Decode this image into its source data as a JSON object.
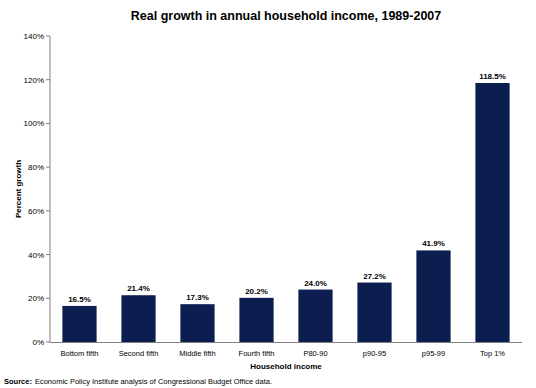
{
  "chart_data": {
    "type": "bar",
    "title": "Real growth in annual household income, 1989-2007",
    "x_label": "Household income",
    "y_label": "Percent growth",
    "source": {
      "label": "Source:",
      "text": "Economic Policy Institute analysis of Congressional Budget Office data."
    },
    "categories": [
      "Bottom fifth",
      "Second fifth",
      "Middle fifth",
      "Fourth fifth",
      "P80-90",
      "p90-95",
      "p95-99",
      "Top 1%"
    ],
    "values": [
      16.5,
      21.4,
      17.3,
      20.2,
      24.0,
      27.2,
      41.9,
      118.5
    ],
    "value_labels": [
      "16.5%",
      "21.4%",
      "17.3%",
      "20.2%",
      "24.0%",
      "27.2%",
      "41.9%",
      "118.5%"
    ],
    "color": "#0c1d4f",
    "ylim": [
      0,
      140
    ],
    "yticks": [
      {
        "value": 0,
        "label": "0%"
      },
      {
        "value": 20,
        "label": "20%"
      },
      {
        "value": 40,
        "label": "40%"
      },
      {
        "value": 60,
        "label": "60%"
      },
      {
        "value": 80,
        "label": "80%"
      },
      {
        "value": 100,
        "label": "100%"
      },
      {
        "value": 120,
        "label": "120%"
      },
      {
        "value": 140,
        "label": "140%"
      }
    ],
    "grid": false,
    "data_labels": true
  }
}
